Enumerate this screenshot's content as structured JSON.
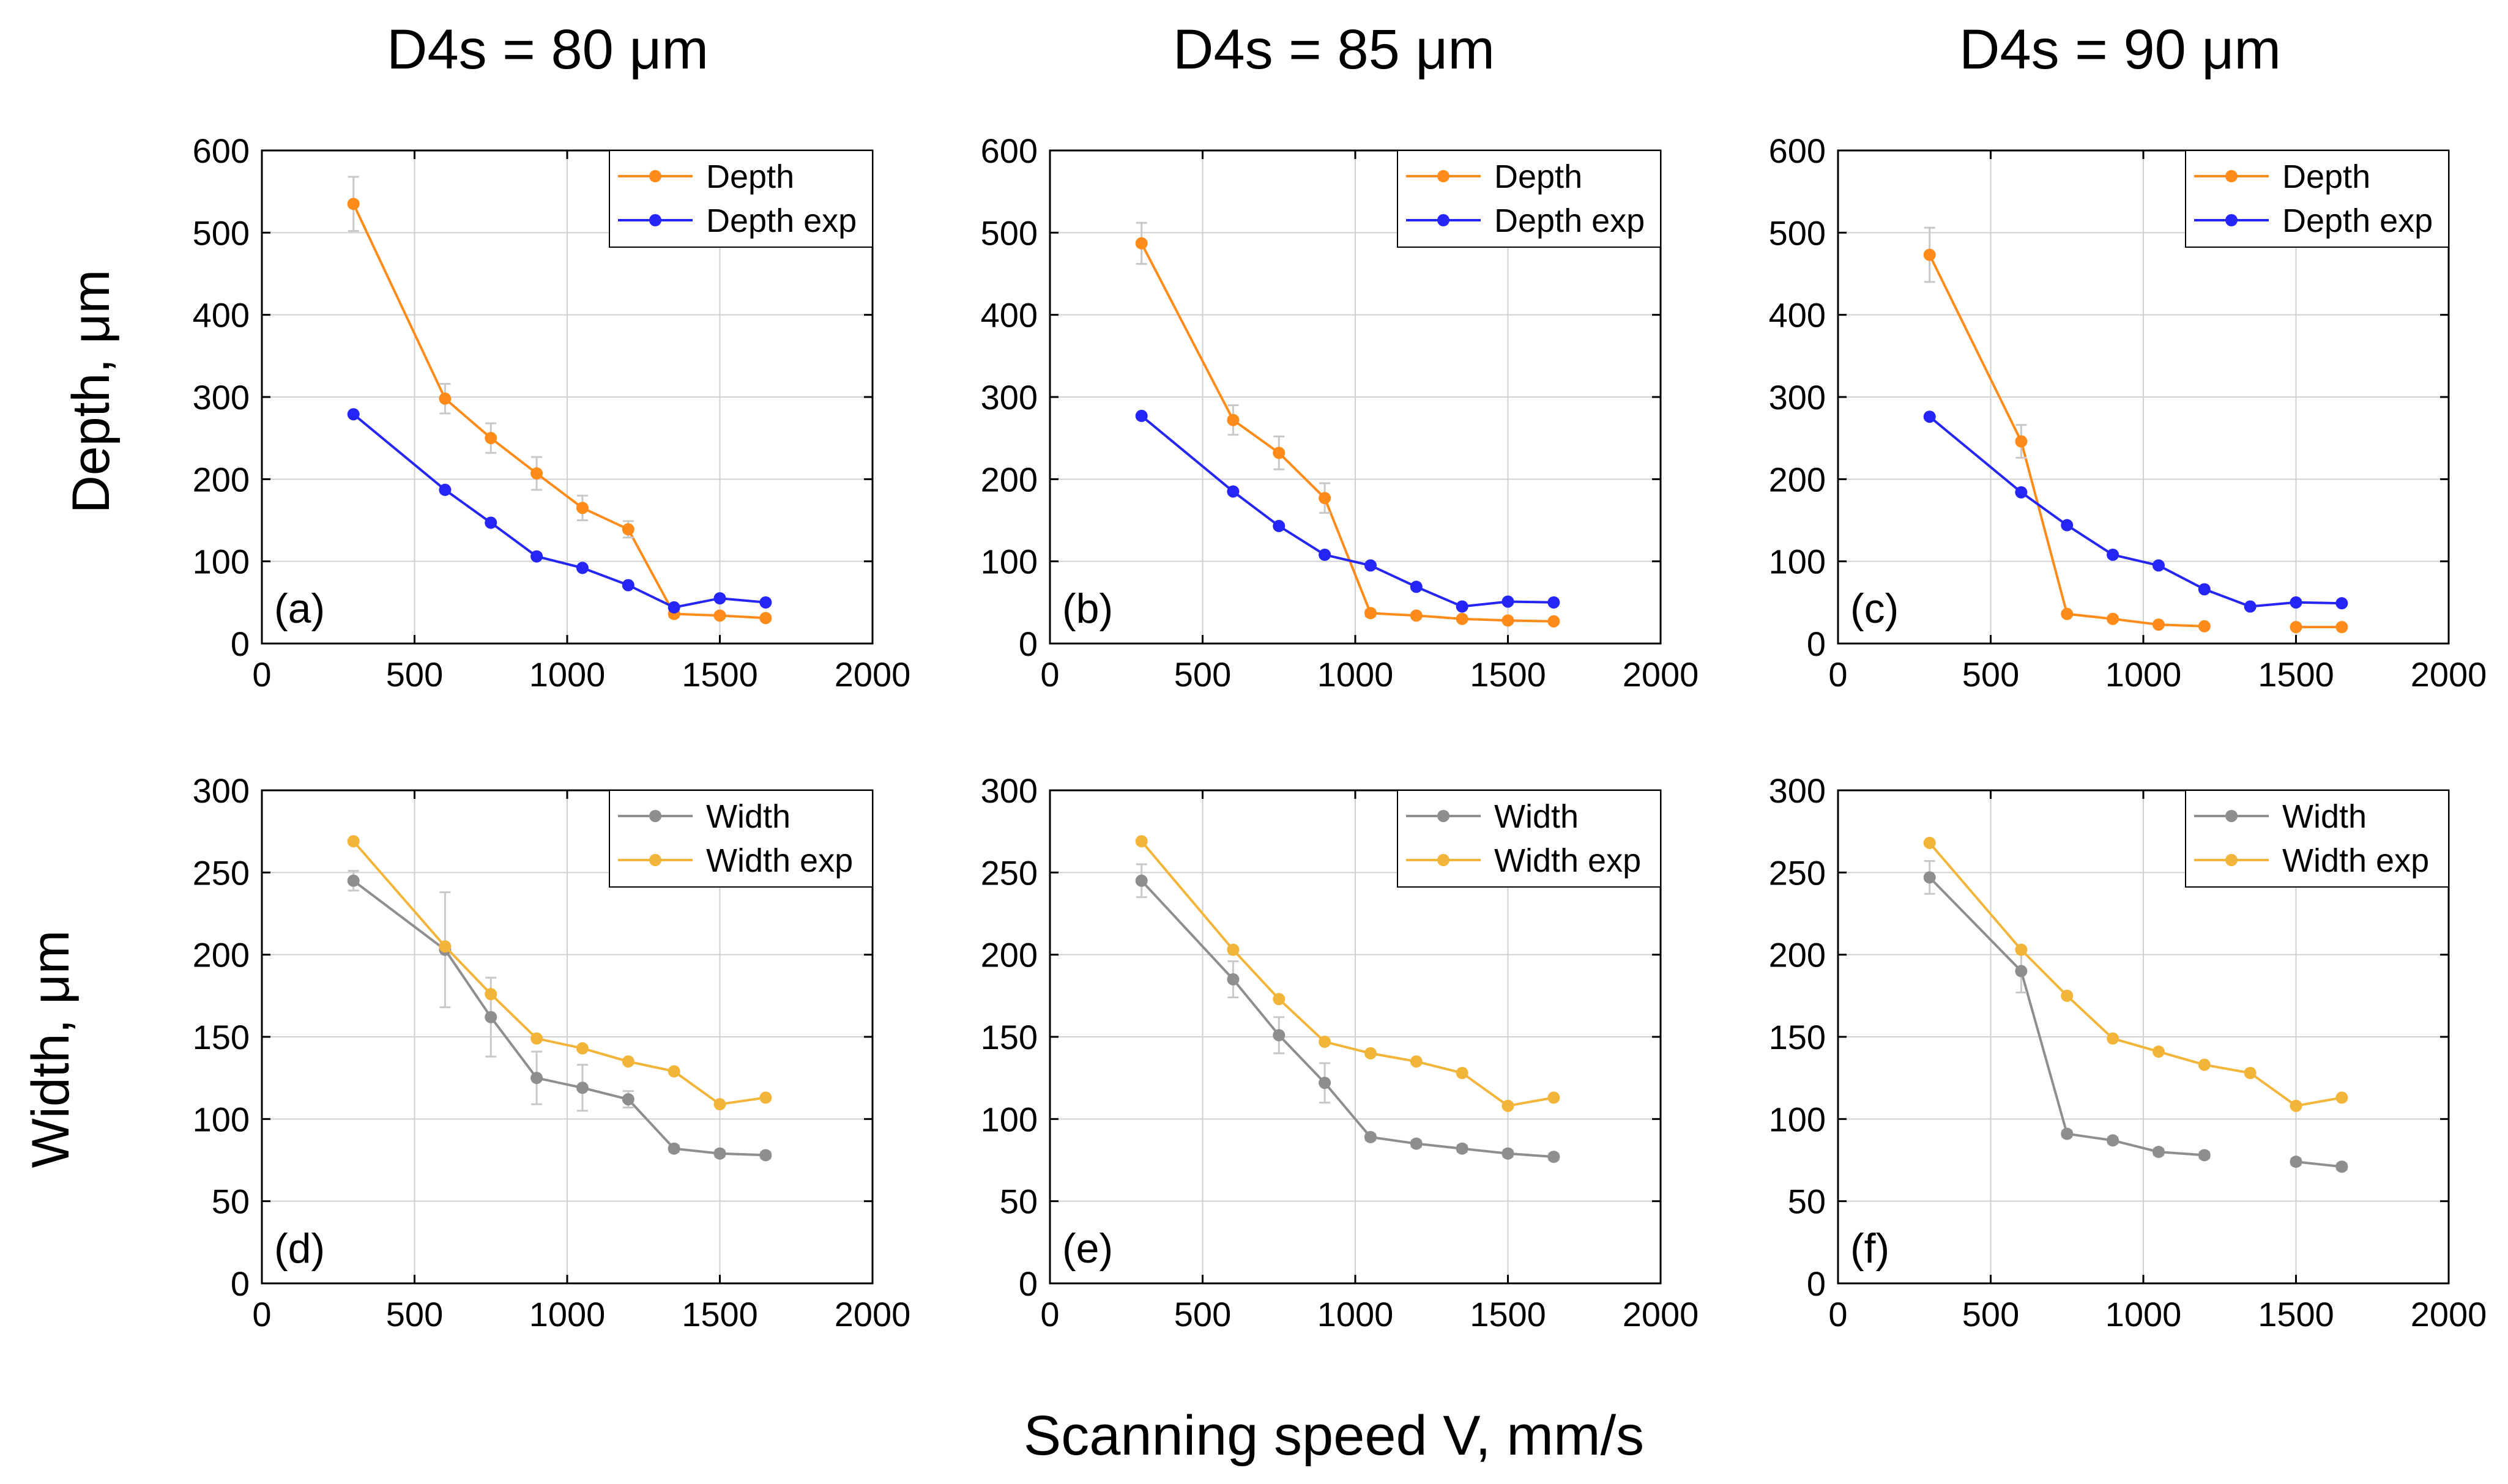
{
  "figure": {
    "column_titles": [
      "D4s = 80 μm",
      "D4s = 85 μm",
      "D4s = 90 μm"
    ],
    "row_labels": [
      "Depth, μm",
      "Width, μm"
    ],
    "xlabel": "Scanning speed V, mm/s"
  },
  "colors": {
    "depth": "#FF8C1A",
    "depth_exp": "#2525F5",
    "width": "#8E8E8E",
    "width_exp": "#F2B53A",
    "grid": "#D0D0D0",
    "errorbar": "#C8C8C8"
  },
  "chart_data": [
    {
      "type": "line",
      "panel_label": "(a)",
      "title": "D4s = 80 μm",
      "ylabel": "Depth, μm",
      "xlim": [
        0,
        2000
      ],
      "ylim": [
        0,
        600
      ],
      "xticks": [
        0,
        500,
        1000,
        1500,
        2000
      ],
      "yticks": [
        0,
        100,
        200,
        300,
        400,
        500,
        600
      ],
      "grid": true,
      "legend_position": "top-right",
      "series": [
        {
          "name": "Depth",
          "color_key": "depth",
          "x": [
            300,
            600,
            750,
            900,
            1050,
            1200,
            1350,
            1500,
            1650
          ],
          "y": [
            535,
            298,
            250,
            207,
            165,
            139,
            36,
            34,
            31
          ],
          "err": [
            33,
            18,
            18,
            20,
            15,
            10,
            4,
            3,
            3
          ]
        },
        {
          "name": "Depth exp",
          "color_key": "depth_exp",
          "x": [
            300,
            600,
            750,
            900,
            1050,
            1200,
            1350,
            1500,
            1650
          ],
          "y": [
            279,
            187,
            147,
            106,
            92,
            71,
            44,
            55,
            50
          ]
        }
      ]
    },
    {
      "type": "line",
      "panel_label": "(b)",
      "title": "D4s = 85 μm",
      "ylabel": "Depth, μm",
      "xlim": [
        0,
        2000
      ],
      "ylim": [
        0,
        600
      ],
      "xticks": [
        0,
        500,
        1000,
        1500,
        2000
      ],
      "yticks": [
        0,
        100,
        200,
        300,
        400,
        500,
        600
      ],
      "grid": true,
      "legend_position": "top-right",
      "series": [
        {
          "name": "Depth",
          "color_key": "depth",
          "x": [
            300,
            600,
            750,
            900,
            1050,
            1200,
            1350,
            1500,
            1650
          ],
          "y": [
            487,
            272,
            232,
            177,
            37,
            34,
            30,
            28,
            27
          ],
          "err": [
            25,
            18,
            20,
            18,
            4,
            3,
            3,
            3,
            3
          ]
        },
        {
          "name": "Depth exp",
          "color_key": "depth_exp",
          "x": [
            300,
            600,
            750,
            900,
            1050,
            1200,
            1350,
            1500,
            1650
          ],
          "y": [
            277,
            185,
            143,
            108,
            95,
            69,
            45,
            51,
            50
          ]
        }
      ]
    },
    {
      "type": "line",
      "panel_label": "(c)",
      "title": "D4s = 90 μm",
      "ylabel": "Depth, μm",
      "xlim": [
        0,
        2000
      ],
      "ylim": [
        0,
        600
      ],
      "xticks": [
        0,
        500,
        1000,
        1500,
        2000
      ],
      "yticks": [
        0,
        100,
        200,
        300,
        400,
        500,
        600
      ],
      "grid": true,
      "legend_position": "top-right",
      "series": [
        {
          "name": "Depth",
          "color_key": "depth",
          "x": [
            300,
            600,
            750,
            900,
            1050,
            1200,
            null,
            1500,
            1650
          ],
          "y": [
            473,
            246,
            36,
            30,
            23,
            21,
            null,
            20,
            20
          ],
          "err": [
            33,
            20,
            3,
            3,
            3,
            3,
            null,
            2,
            2
          ]
        },
        {
          "name": "Depth exp",
          "color_key": "depth_exp",
          "x": [
            300,
            600,
            750,
            900,
            1050,
            1200,
            1350,
            1500,
            1650
          ],
          "y": [
            276,
            184,
            144,
            108,
            95,
            66,
            45,
            50,
            49
          ]
        }
      ]
    },
    {
      "type": "line",
      "panel_label": "(d)",
      "title": "D4s = 80 μm",
      "ylabel": "Width, μm",
      "xlabel": "Scanning speed V, mm/s",
      "xlim": [
        0,
        2000
      ],
      "ylim": [
        0,
        300
      ],
      "xticks": [
        0,
        500,
        1000,
        1500,
        2000
      ],
      "yticks": [
        0,
        50,
        100,
        150,
        200,
        250,
        300
      ],
      "grid": true,
      "legend_position": "top-right",
      "series": [
        {
          "name": "Width",
          "color_key": "width",
          "x": [
            300,
            600,
            750,
            900,
            1050,
            1200,
            1350,
            1500,
            1650
          ],
          "y": [
            245,
            203,
            162,
            125,
            119,
            112,
            82,
            79,
            78
          ],
          "err": [
            6,
            35,
            24,
            16,
            14,
            5,
            2,
            2,
            2
          ]
        },
        {
          "name": "Width exp",
          "color_key": "width_exp",
          "x": [
            300,
            600,
            750,
            900,
            1050,
            1200,
            1350,
            1500,
            1650
          ],
          "y": [
            269,
            205,
            176,
            149,
            143,
            135,
            129,
            109,
            113
          ]
        }
      ]
    },
    {
      "type": "line",
      "panel_label": "(e)",
      "title": "D4s = 85 μm",
      "ylabel": "Width, μm",
      "xlabel": "Scanning speed V, mm/s",
      "xlim": [
        0,
        2000
      ],
      "ylim": [
        0,
        300
      ],
      "xticks": [
        0,
        500,
        1000,
        1500,
        2000
      ],
      "yticks": [
        0,
        50,
        100,
        150,
        200,
        250,
        300
      ],
      "grid": true,
      "legend_position": "top-right",
      "series": [
        {
          "name": "Width",
          "color_key": "width",
          "x": [
            300,
            600,
            750,
            900,
            1050,
            1200,
            1350,
            1500,
            1650
          ],
          "y": [
            245,
            185,
            151,
            122,
            89,
            85,
            82,
            79,
            77
          ],
          "err": [
            10,
            11,
            11,
            12,
            2,
            2,
            2,
            2,
            2
          ]
        },
        {
          "name": "Width exp",
          "color_key": "width_exp",
          "x": [
            300,
            600,
            750,
            900,
            1050,
            1200,
            1350,
            1500,
            1650
          ],
          "y": [
            269,
            203,
            173,
            147,
            140,
            135,
            128,
            108,
            113
          ]
        }
      ]
    },
    {
      "type": "line",
      "panel_label": "(f)",
      "title": "D4s = 90 μm",
      "ylabel": "Width, μm",
      "xlabel": "Scanning speed V, mm/s",
      "xlim": [
        0,
        2000
      ],
      "ylim": [
        0,
        300
      ],
      "xticks": [
        0,
        500,
        1000,
        1500,
        2000
      ],
      "yticks": [
        0,
        50,
        100,
        150,
        200,
        250,
        300
      ],
      "grid": true,
      "legend_position": "top-right",
      "series": [
        {
          "name": "Width",
          "color_key": "width",
          "x": [
            300,
            600,
            750,
            900,
            1050,
            1200,
            null,
            1500,
            1650
          ],
          "y": [
            247,
            190,
            91,
            87,
            80,
            78,
            null,
            74,
            71
          ],
          "err": [
            10,
            13,
            2,
            2,
            2,
            2,
            null,
            2,
            2
          ]
        },
        {
          "name": "Width exp",
          "color_key": "width_exp",
          "x": [
            300,
            600,
            750,
            900,
            1050,
            1200,
            1350,
            1500,
            1650
          ],
          "y": [
            268,
            203,
            175,
            149,
            141,
            133,
            128,
            108,
            113
          ]
        }
      ]
    }
  ]
}
